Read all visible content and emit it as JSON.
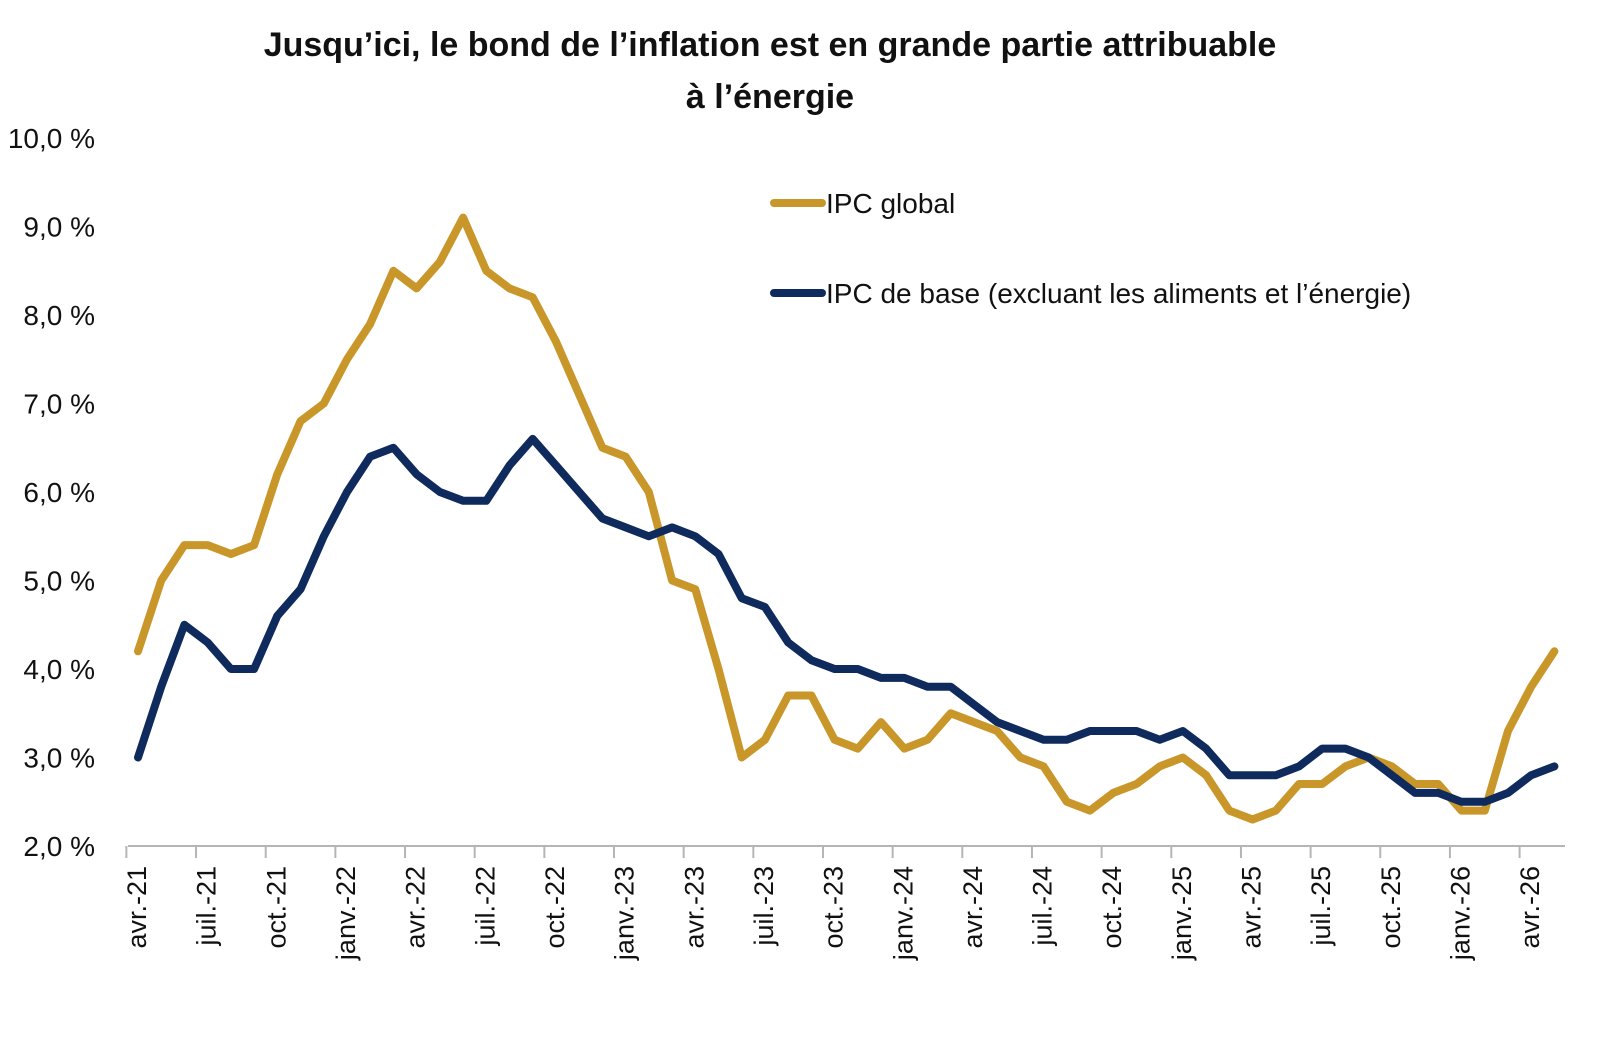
{
  "chart_data": {
    "type": "line",
    "title": "Jusqu’ici, le bond de l’inflation est en grande partie attribuable",
    "subtitle": "à l’énergie",
    "xlabel": "",
    "ylabel": "",
    "ylim": [
      2.0,
      10.0
    ],
    "ytick_labels": [
      "10,0 %",
      "9,0 %",
      "8,0 %",
      "7,0 %",
      "6,0 %",
      "5,0 %",
      "4,0 %",
      "3,0 %",
      "2,0 %"
    ],
    "ytick_values": [
      10,
      9,
      8,
      7,
      6,
      5,
      4,
      3,
      2
    ],
    "grid": false,
    "legend_position": "top-right",
    "xtick_labels": [
      "avr.-21",
      "juil.-21",
      "oct.-21",
      "janv.-22",
      "avr.-22",
      "juil.-22",
      "oct.-22",
      "janv.-23",
      "avr.-23",
      "juil.-23",
      "oct.-23",
      "janv.-24",
      "avr.-24",
      "juil.-24",
      "oct.-24",
      "janv.-25",
      "avr.-25",
      "juil.-25",
      "oct.-25",
      "janv.-26",
      "avr.-26"
    ],
    "x": [
      "2021-04",
      "2021-05",
      "2021-06",
      "2021-07",
      "2021-08",
      "2021-09",
      "2021-10",
      "2021-11",
      "2021-12",
      "2022-01",
      "2022-02",
      "2022-03",
      "2022-04",
      "2022-05",
      "2022-06",
      "2022-07",
      "2022-08",
      "2022-09",
      "2022-10",
      "2022-11",
      "2022-12",
      "2023-01",
      "2023-02",
      "2023-03",
      "2023-04",
      "2023-05",
      "2023-06",
      "2023-07",
      "2023-08",
      "2023-09",
      "2023-10",
      "2023-11",
      "2023-12",
      "2024-01",
      "2024-02",
      "2024-03",
      "2024-04",
      "2024-05",
      "2024-06",
      "2024-07",
      "2024-08",
      "2024-09",
      "2024-10",
      "2024-11",
      "2024-12",
      "2025-01",
      "2025-02",
      "2025-03",
      "2025-04",
      "2025-05",
      "2025-06",
      "2025-07",
      "2025-08",
      "2025-09",
      "2025-10",
      "2025-11",
      "2025-12",
      "2026-01",
      "2026-02",
      "2026-03",
      "2026-04",
      "2026-05"
    ],
    "series": [
      {
        "name": "IPC global",
        "color": "#C9962A",
        "values": [
          4.2,
          5.0,
          5.4,
          5.4,
          5.3,
          5.4,
          6.2,
          6.8,
          7.0,
          7.5,
          7.9,
          8.5,
          8.3,
          8.6,
          9.1,
          8.5,
          8.3,
          8.2,
          7.7,
          7.1,
          6.5,
          6.4,
          6.0,
          5.0,
          4.9,
          4.0,
          3.0,
          3.2,
          3.7,
          3.7,
          3.2,
          3.1,
          3.4,
          3.1,
          3.2,
          3.5,
          3.4,
          3.3,
          3.0,
          2.9,
          2.5,
          2.4,
          2.6,
          2.7,
          2.9,
          3.0,
          2.8,
          2.4,
          2.3,
          2.4,
          2.7,
          2.7,
          2.9,
          3.0,
          2.9,
          2.7,
          2.7,
          2.4,
          2.4,
          3.3,
          3.8,
          4.2
        ]
      },
      {
        "name": "IPC de base (excluant les aliments et l’énergie)",
        "color": "#0F2A5C",
        "values": [
          3.0,
          3.8,
          4.5,
          4.3,
          4.0,
          4.0,
          4.6,
          4.9,
          5.5,
          6.0,
          6.4,
          6.5,
          6.2,
          6.0,
          5.9,
          5.9,
          6.3,
          6.6,
          6.3,
          6.0,
          5.7,
          5.6,
          5.5,
          5.6,
          5.5,
          5.3,
          4.8,
          4.7,
          4.3,
          4.1,
          4.0,
          4.0,
          3.9,
          3.9,
          3.8,
          3.8,
          3.6,
          3.4,
          3.3,
          3.2,
          3.2,
          3.3,
          3.3,
          3.3,
          3.2,
          3.3,
          3.1,
          2.8,
          2.8,
          2.8,
          2.9,
          3.1,
          3.1,
          3.0,
          2.8,
          2.6,
          2.6,
          2.5,
          2.5,
          2.6,
          2.8,
          2.9
        ]
      }
    ]
  }
}
